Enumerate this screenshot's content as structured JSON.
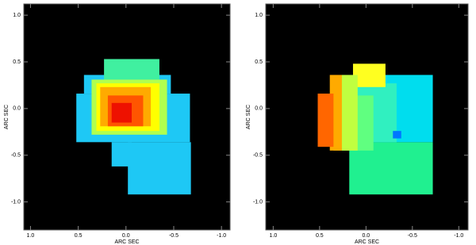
{
  "chart_data": [
    {
      "type": "heatmap",
      "xlabel": "ARC SEC",
      "ylabel": "ARC SEC",
      "xlim": [
        1.07,
        -1.09
      ],
      "ylim": [
        -1.3,
        1.12
      ],
      "xticks": [
        {
          "value": 1.0,
          "label": "1.0"
        },
        {
          "value": 0.5,
          "label": "0.5"
        },
        {
          "value": 0.0,
          "label": "0.0"
        },
        {
          "value": -0.5,
          "label": "-0.5"
        },
        {
          "value": -1.0,
          "label": "-1.0"
        }
      ],
      "yticks": [
        {
          "value": 1.0,
          "label": "1.0"
        },
        {
          "value": 0.5,
          "label": "0.5"
        },
        {
          "value": 0.0,
          "label": "0.0"
        },
        {
          "value": -0.5,
          "label": "-0.5"
        },
        {
          "value": -1.0,
          "label": "-1.0"
        }
      ],
      "background": "#000000",
      "regions": [
        {
          "x": [
            0.52,
            -0.67
          ],
          "y": [
            0.16,
            -0.36
          ],
          "color": "#1ec8f5"
        },
        {
          "x": [
            0.44,
            -0.47
          ],
          "y": [
            0.36,
            0.16
          ],
          "color": "#1ec8f5"
        },
        {
          "x": [
            -0.02,
            -0.68
          ],
          "y": [
            -0.36,
            -0.92
          ],
          "color": "#1ec8f5"
        },
        {
          "x": [
            0.15,
            -0.06
          ],
          "y": [
            -0.36,
            -0.62
          ],
          "color": "#1ec8f5"
        },
        {
          "x": [
            0.23,
            -0.35
          ],
          "y": [
            0.53,
            0.31
          ],
          "color": "#40f0a0"
        },
        {
          "x": [
            0.36,
            -0.43
          ],
          "y": [
            0.31,
            -0.28
          ],
          "color": "#b0ff50"
        },
        {
          "x": [
            0.31,
            -0.35
          ],
          "y": [
            0.27,
            -0.24
          ],
          "color": "#ffff00"
        },
        {
          "x": [
            0.27,
            -0.26
          ],
          "y": [
            0.23,
            -0.19
          ],
          "color": "#ffaa00"
        },
        {
          "x": [
            0.19,
            -0.18
          ],
          "y": [
            0.14,
            -0.19
          ],
          "color": "#ff5500"
        },
        {
          "x": [
            0.15,
            -0.06
          ],
          "y": [
            0.06,
            -0.15
          ],
          "color": "#ee1100"
        }
      ]
    },
    {
      "type": "heatmap",
      "xlabel": "ARC SEC",
      "ylabel": "ARC SEC",
      "xlim": [
        1.08,
        -1.1
      ],
      "ylim": [
        -1.3,
        1.12
      ],
      "xticks": [
        {
          "value": 1.0,
          "label": "1.0"
        },
        {
          "value": 0.5,
          "label": "0.5"
        },
        {
          "value": 0.0,
          "label": "0.0"
        },
        {
          "value": -0.5,
          "label": "-0.5"
        },
        {
          "value": -1.0,
          "label": "-1.0"
        }
      ],
      "yticks": [
        {
          "value": 1.0,
          "label": "1.0"
        },
        {
          "value": 0.5,
          "label": "0.5"
        },
        {
          "value": 0.0,
          "label": "0.0"
        },
        {
          "value": -0.5,
          "label": "-0.5"
        },
        {
          "value": -1.0,
          "label": "-1.0"
        }
      ],
      "background": "#000000",
      "regions": [
        {
          "x": [
            0.18,
            -0.72
          ],
          "y": [
            -0.36,
            -0.92
          ],
          "color": "#20f090"
        },
        {
          "x": [
            0.01,
            -0.72
          ],
          "y": [
            0.36,
            -0.36
          ],
          "color": "#00ddee"
        },
        {
          "x": [
            0.18,
            -0.33
          ],
          "y": [
            0.27,
            -0.36
          ],
          "color": "#30f0c0"
        },
        {
          "x": [
            0.26,
            -0.08
          ],
          "y": [
            0.14,
            -0.45
          ],
          "color": "#60ff80"
        },
        {
          "x": [
            0.14,
            -0.21
          ],
          "y": [
            0.48,
            0.23
          ],
          "color": "#ffff20"
        },
        {
          "x": [
            0.35,
            0.09
          ],
          "y": [
            0.36,
            -0.45
          ],
          "color": "#c0ff40"
        },
        {
          "x": [
            0.39,
            0.26
          ],
          "y": [
            0.36,
            -0.45
          ],
          "color": "#ffaa00"
        },
        {
          "x": [
            0.52,
            0.35
          ],
          "y": [
            0.16,
            -0.41
          ],
          "color": "#ff6600"
        },
        {
          "x": [
            -0.29,
            -0.38
          ],
          "y": [
            -0.24,
            -0.32
          ],
          "color": "#0077ff"
        }
      ]
    }
  ]
}
